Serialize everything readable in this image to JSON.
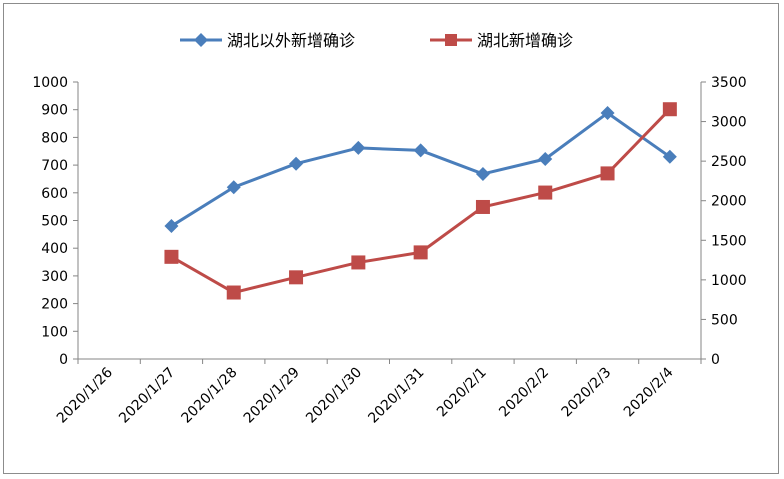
{
  "chart_data": {
    "type": "line",
    "categories": [
      "2020/1/26",
      "2020/1/27",
      "2020/1/28",
      "2020/1/29",
      "2020/1/30",
      "2020/1/31",
      "2020/2/1",
      "2020/2/2",
      "2020/2/3",
      "2020/2/4"
    ],
    "series": [
      {
        "name": "湖北以外新增确诊",
        "axis": "left",
        "color": "#4a7ebb",
        "marker": "diamond",
        "values": [
          null,
          480,
          620,
          705,
          762,
          753,
          668,
          722,
          888,
          730
        ]
      },
      {
        "name": "湖北新增确诊",
        "axis": "right",
        "color": "#be4b48",
        "marker": "square",
        "values": [
          null,
          1291,
          840,
          1032,
          1220,
          1347,
          1921,
          2103,
          2345,
          3156
        ]
      }
    ],
    "y_left": {
      "lim": [
        0,
        1000
      ],
      "ticks": [
        "0",
        "100",
        "200",
        "300",
        "400",
        "500",
        "600",
        "700",
        "800",
        "900",
        "1000"
      ]
    },
    "y_right": {
      "lim": [
        0,
        3500
      ],
      "ticks": [
        "0",
        "500",
        "1000",
        "1500",
        "2000",
        "2500",
        "3000",
        "3500"
      ]
    },
    "legend": "top-center",
    "grid": false
  }
}
